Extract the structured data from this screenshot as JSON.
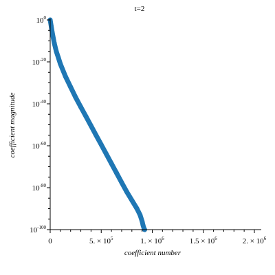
{
  "chart_data": {
    "type": "scatter",
    "title": "t=2",
    "xlabel": "coefficient number",
    "ylabel": "coefficient magnitude",
    "xlim": [
      0,
      2000000
    ],
    "ylim_log10": [
      -100,
      0
    ],
    "yscale": "log",
    "grid": false,
    "legend": "none",
    "x_ticks": [
      {
        "base": "0",
        "exp": ""
      },
      {
        "base": "5. × 10",
        "exp": "5"
      },
      {
        "base": "1. × 10",
        "exp": "6"
      },
      {
        "base": "1.5 × 10",
        "exp": "6"
      },
      {
        "base": "2. × 10",
        "exp": "6"
      }
    ],
    "y_ticks": [
      {
        "base": "10",
        "exp": "0"
      },
      {
        "base": "10",
        "exp": "-20"
      },
      {
        "base": "10",
        "exp": "-40"
      },
      {
        "base": "10",
        "exp": "-60"
      },
      {
        "base": "10",
        "exp": "-80"
      },
      {
        "base": "10",
        "exp": "-100"
      }
    ],
    "series": [
      {
        "color": "#1f77b4",
        "x": [
          0,
          10000,
          20000,
          40000,
          60000,
          80000,
          100000,
          150000,
          200000,
          250000,
          300000,
          350000,
          400000,
          450000,
          500000,
          550000,
          600000,
          650000,
          700000,
          750000,
          800000,
          850000,
          880000,
          900000,
          910000,
          920000,
          925000
        ],
        "log10_y": [
          0,
          -3,
          -6,
          -11,
          -15,
          -18,
          -21,
          -27,
          -32,
          -37,
          -41.5,
          -46,
          -50.5,
          -55,
          -59.5,
          -64,
          -68.5,
          -73,
          -77.5,
          -82,
          -86,
          -90,
          -93,
          -96,
          -98,
          -99.5,
          -100
        ]
      }
    ]
  }
}
